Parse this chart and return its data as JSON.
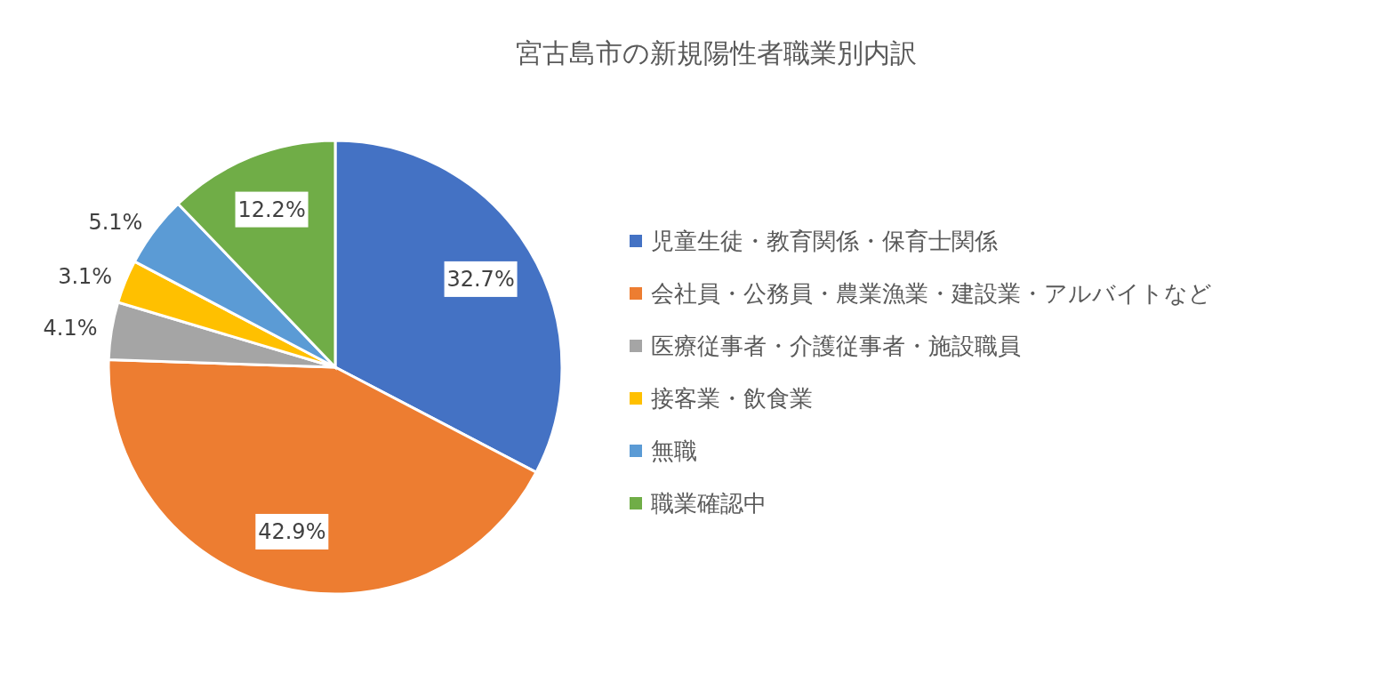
{
  "chart_data": {
    "type": "pie",
    "title": "宮古島市の新規陽性者職業別内訳",
    "categories": [
      "児童生徒・教育関係・保育士関係",
      "会社員・公務員・農業漁業・建設業・アルバイトなど",
      "医療従事者・介護従事者・施設職員",
      "接客業・飲食業",
      "無職",
      "職業確認中"
    ],
    "values": [
      32.7,
      42.9,
      4.1,
      3.1,
      5.1,
      12.2
    ],
    "colors": [
      "#4472c4",
      "#ed7d31",
      "#a5a5a5",
      "#ffc000",
      "#5b9bd5",
      "#70ad47"
    ],
    "value_labels": [
      "32.7%",
      "42.9%",
      "4.1%",
      "3.1%",
      "5.1%",
      "12.2%"
    ],
    "legend": "right"
  }
}
